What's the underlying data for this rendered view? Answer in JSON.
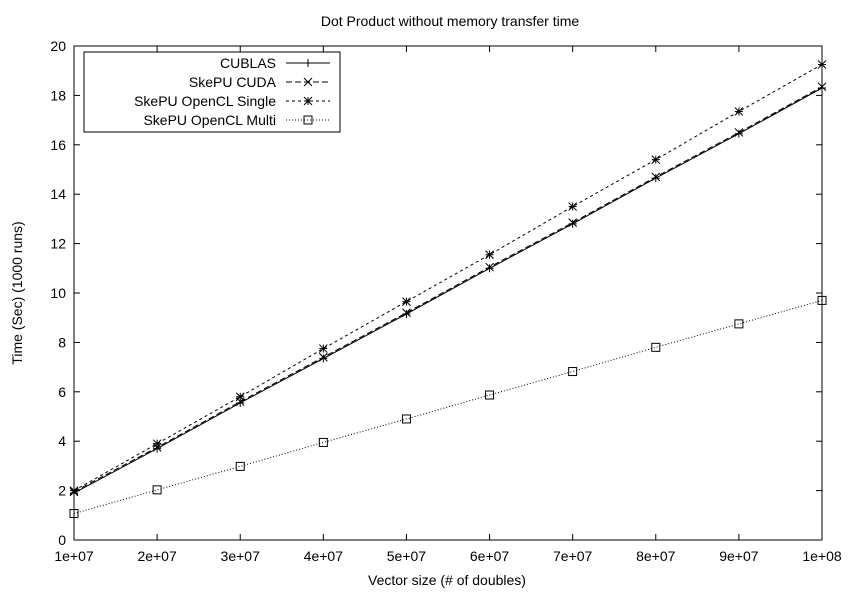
{
  "chart_data": {
    "type": "line",
    "title": "Dot Product without memory transfer time",
    "xlabel": "Vector size (# of doubles)",
    "ylabel": "Time (Sec) (1000 runs)",
    "xlim": [
      10000000,
      100000000
    ],
    "ylim": [
      0,
      20
    ],
    "x": [
      10000000,
      20000000,
      30000000,
      40000000,
      50000000,
      60000000,
      70000000,
      80000000,
      90000000,
      100000000
    ],
    "x_tick_labels": [
      "1e+07",
      "2e+07",
      "3e+07",
      "4e+07",
      "5e+07",
      "6e+07",
      "7e+07",
      "8e+07",
      "9e+07",
      "1e+08"
    ],
    "y_ticks": [
      0,
      2,
      4,
      6,
      8,
      10,
      12,
      14,
      16,
      18,
      20
    ],
    "y_tick_labels": [
      "0",
      "2",
      "4",
      "6",
      "8",
      "10",
      "12",
      "14",
      "16",
      "18",
      "20"
    ],
    "grid": false,
    "legend_position": "top-left",
    "series": [
      {
        "name": "CUBLAS",
        "marker": "plus",
        "line_style": "solid",
        "values": [
          1.9,
          3.7,
          5.55,
          7.35,
          9.15,
          11.0,
          12.8,
          14.65,
          16.45,
          18.3
        ]
      },
      {
        "name": "SkePU CUDA",
        "marker": "cross",
        "line_style": "dashed",
        "values": [
          1.95,
          3.75,
          5.6,
          7.4,
          9.2,
          11.05,
          12.85,
          14.7,
          16.5,
          18.35
        ]
      },
      {
        "name": "SkePU OpenCL Single",
        "marker": "star",
        "line_style": "short-dashed",
        "values": [
          2.0,
          3.9,
          5.8,
          7.75,
          9.65,
          11.55,
          13.5,
          15.4,
          17.35,
          19.25
        ]
      },
      {
        "name": "SkePU OpenCL Multi",
        "marker": "square",
        "line_style": "dotted",
        "values": [
          1.07,
          2.03,
          2.98,
          3.95,
          4.9,
          5.87,
          6.82,
          7.8,
          8.75,
          9.7
        ]
      }
    ]
  }
}
